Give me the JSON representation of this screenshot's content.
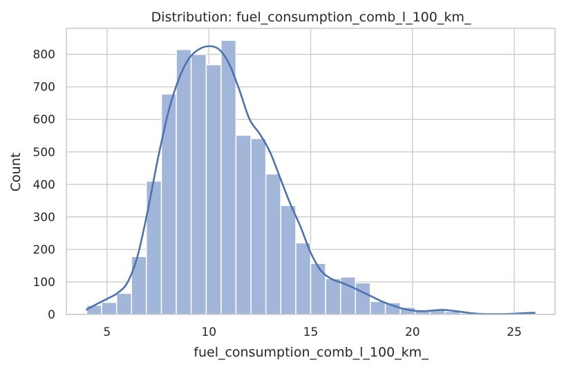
{
  "chart_data": {
    "type": "bar",
    "subtype": "histogram-with-kde",
    "title": "Distribution: fuel_consumption_comb_l_100_km_",
    "xlabel": "fuel_consumption_comb_l_100_km_",
    "ylabel": "Count",
    "xlim": [
      3.0,
      27.0
    ],
    "ylim": [
      0,
      880
    ],
    "xticks": [
      5,
      10,
      15,
      20,
      25
    ],
    "yticks": [
      0,
      100,
      200,
      300,
      400,
      500,
      600,
      700,
      800
    ],
    "grid": true,
    "legend": false,
    "colors": {
      "bar": "#a2b6d9",
      "kde": "#4c72b0",
      "grid": "#cccccc"
    },
    "bins": [
      {
        "start": 4.0,
        "end": 4.73,
        "count": 28
      },
      {
        "start": 4.73,
        "end": 5.47,
        "count": 37
      },
      {
        "start": 5.47,
        "end": 6.2,
        "count": 65
      },
      {
        "start": 6.2,
        "end": 6.93,
        "count": 178
      },
      {
        "start": 6.93,
        "end": 7.67,
        "count": 410
      },
      {
        "start": 7.67,
        "end": 8.4,
        "count": 678
      },
      {
        "start": 8.4,
        "end": 9.13,
        "count": 815
      },
      {
        "start": 9.13,
        "end": 9.87,
        "count": 800
      },
      {
        "start": 9.87,
        "end": 10.6,
        "count": 768
      },
      {
        "start": 10.6,
        "end": 11.33,
        "count": 843
      },
      {
        "start": 11.33,
        "end": 12.07,
        "count": 551
      },
      {
        "start": 12.07,
        "end": 12.8,
        "count": 541
      },
      {
        "start": 12.8,
        "end": 13.53,
        "count": 432
      },
      {
        "start": 13.53,
        "end": 14.27,
        "count": 335
      },
      {
        "start": 14.27,
        "end": 15.0,
        "count": 220
      },
      {
        "start": 15.0,
        "end": 15.73,
        "count": 157
      },
      {
        "start": 15.73,
        "end": 16.47,
        "count": 110
      },
      {
        "start": 16.47,
        "end": 17.2,
        "count": 115
      },
      {
        "start": 17.2,
        "end": 17.93,
        "count": 97
      },
      {
        "start": 17.93,
        "end": 18.67,
        "count": 40
      },
      {
        "start": 18.67,
        "end": 19.4,
        "count": 36
      },
      {
        "start": 19.4,
        "end": 20.13,
        "count": 22
      },
      {
        "start": 20.13,
        "end": 20.87,
        "count": 11
      },
      {
        "start": 20.87,
        "end": 21.6,
        "count": 15
      },
      {
        "start": 21.6,
        "end": 22.33,
        "count": 9
      },
      {
        "start": 22.33,
        "end": 23.07,
        "count": 4
      },
      {
        "start": 23.07,
        "end": 23.8,
        "count": 2
      },
      {
        "start": 23.8,
        "end": 24.53,
        "count": 2
      },
      {
        "start": 24.53,
        "end": 25.27,
        "count": 3
      },
      {
        "start": 25.27,
        "end": 26.0,
        "count": 5
      }
    ],
    "kde": {
      "x": [
        4.0,
        4.5,
        5.0,
        5.5,
        6.0,
        6.5,
        7.0,
        7.5,
        8.0,
        8.5,
        9.0,
        9.5,
        10.0,
        10.5,
        11.0,
        11.5,
        12.0,
        12.5,
        13.0,
        13.5,
        14.0,
        14.5,
        15.0,
        15.5,
        16.0,
        16.5,
        17.0,
        17.5,
        18.0,
        18.5,
        19.0,
        19.5,
        20.0,
        20.5,
        21.0,
        21.5,
        22.0,
        22.5,
        23.0,
        23.5,
        24.0,
        24.5,
        25.0,
        25.5,
        26.0
      ],
      "y": [
        15,
        32,
        48,
        65,
        98,
        180,
        320,
        480,
        620,
        720,
        785,
        815,
        825,
        815,
        770,
        690,
        600,
        555,
        500,
        420,
        340,
        270,
        190,
        135,
        110,
        98,
        85,
        70,
        55,
        40,
        28,
        18,
        12,
        10,
        12,
        14,
        11,
        7,
        3,
        1,
        1,
        1,
        2,
        4,
        5
      ]
    }
  }
}
